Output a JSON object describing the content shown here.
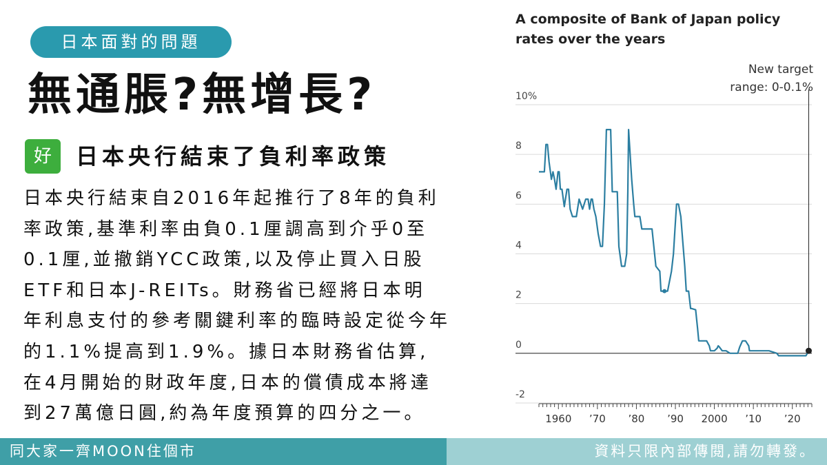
{
  "topic_pill": "日本面對的問題",
  "headline": "無通脹?無增長?",
  "badge": "好",
  "subhead": "日本央行結束了負利率政策",
  "body_lines": [
    "日本央行結束自2016年起推行了8年的負利",
    "率政策,基準利率由負0.1厘調高到介乎0至",
    "0.1厘,並撤銷YCC政策,以及停止買入日股",
    "ETF和日本J-REITs。財務省已經將日本明",
    "年利息支付的參考關鍵利率的臨時設定從今年",
    "的1.1%提高到1.9%。據日本財務省估算,",
    "在4月開始的財政年度,日本的償債成本將達",
    "到27萬億日圓,約為年度預算的四分之一。"
  ],
  "footer": {
    "left": "同大家一齊MOON住個市",
    "right": "資料只限內部傳閱,請勿轉發。"
  },
  "chart_data": {
    "type": "line",
    "title": "A composite of Bank of Japan policy rates over the years",
    "annotation": [
      "New target",
      "range: 0-0.1%"
    ],
    "xlim": [
      1955,
      2025
    ],
    "ylim": [
      -2,
      10
    ],
    "y_ticks": [
      {
        "value": 10,
        "label": "10%"
      },
      {
        "value": 8,
        "label": "8"
      },
      {
        "value": 6,
        "label": "6"
      },
      {
        "value": 4,
        "label": "4"
      },
      {
        "value": 2,
        "label": "2"
      },
      {
        "value": 0,
        "label": "0"
      },
      {
        "value": -2,
        "label": "-2"
      }
    ],
    "x_ticks": [
      {
        "value": 1960,
        "label": "1960"
      },
      {
        "value": 1970,
        "label": "’70"
      },
      {
        "value": 1980,
        "label": "’80"
      },
      {
        "value": 1990,
        "label": "’90"
      },
      {
        "value": 2000,
        "label": "2000"
      },
      {
        "value": 2010,
        "label": "’10"
      },
      {
        "value": 2020,
        "label": "’20"
      }
    ],
    "line_color": "#2b7ea1",
    "grid": true,
    "series": [
      {
        "x": [
          1955.0,
          1956.4,
          1956.8,
          1957.2,
          1957.6,
          1958.2,
          1958.6,
          1959.0,
          1959.4,
          1959.9,
          1960.2,
          1960.5,
          1960.9,
          1961.5,
          1962.2,
          1962.6,
          1963.0,
          1963.6,
          1964.2,
          1964.6,
          1964.9,
          1965.3,
          1966.2,
          1967.0,
          1967.6,
          1968.0,
          1968.4,
          1968.7,
          1969.1,
          1969.6,
          1970.2,
          1970.8,
          1971.3,
          1971.8,
          1972.3,
          1972.8,
          1973.2,
          1973.4,
          1973.8,
          1974.2,
          1975.1,
          1975.5,
          1976.2,
          1977.0,
          1977.5,
          1977.8,
          1978.0,
          1978.8,
          1979.3,
          1979.6,
          1979.9,
          1980.5,
          1980.9,
          1981.4,
          1982.3,
          1983.2,
          1984.0,
          1985.0,
          1986.0,
          1986.3,
          1986.8,
          1987.2,
          1988.0,
          1989.0,
          1989.5,
          1989.9,
          1990.3,
          1990.8,
          1991.4,
          1991.9,
          1992.4,
          1992.8,
          1993.4,
          1993.9,
          1994.2,
          1995.2,
          1995.7,
          1996.0,
          1997.0,
          1998.0,
          1998.7,
          1999.0,
          2000.0,
          2000.7,
          2001.0,
          2001.3,
          2002.0,
          2003.0,
          2004.0,
          2005.0,
          2006.0,
          2006.5,
          2007.2,
          2008.0,
          2008.8,
          2009.0,
          2010.0,
          2012.0,
          2014.0,
          2016.0,
          2016.5,
          2018.0,
          2020.0,
          2022.0,
          2023.5,
          2024.2
        ],
        "y": [
          7.3,
          7.3,
          8.4,
          8.4,
          7.7,
          7.0,
          7.3,
          7.0,
          6.6,
          7.3,
          7.3,
          6.6,
          6.6,
          5.9,
          6.6,
          6.6,
          5.8,
          5.5,
          5.5,
          5.5,
          5.8,
          6.2,
          5.8,
          6.2,
          6.2,
          5.8,
          6.2,
          6.2,
          5.8,
          5.5,
          4.8,
          4.3,
          4.3,
          6.0,
          9.0,
          9.0,
          9.0,
          9.0,
          6.5,
          6.5,
          6.5,
          4.3,
          3.5,
          3.5,
          4.0,
          6.5,
          9.0,
          7.0,
          6.0,
          5.5,
          5.5,
          5.5,
          5.5,
          5.0,
          5.0,
          5.0,
          5.0,
          3.5,
          3.3,
          2.5,
          2.5,
          2.5,
          2.5,
          3.3,
          4.0,
          5.0,
          6.0,
          6.0,
          5.5,
          4.5,
          3.5,
          2.5,
          2.5,
          1.8,
          1.8,
          1.75,
          1.0,
          0.5,
          0.5,
          0.5,
          0.3,
          0.1,
          0.1,
          0.2,
          0.3,
          0.25,
          0.1,
          0.1,
          0.0,
          0.0,
          0.0,
          0.25,
          0.5,
          0.5,
          0.3,
          0.1,
          0.1,
          0.1,
          0.1,
          0.0,
          -0.1,
          -0.1,
          -0.1,
          -0.1,
          -0.1,
          0.1
        ],
        "markers": [
          {
            "x": 1987.2,
            "y": 2.5
          },
          {
            "x": 2024.2,
            "y": 0.1
          }
        ]
      }
    ]
  }
}
